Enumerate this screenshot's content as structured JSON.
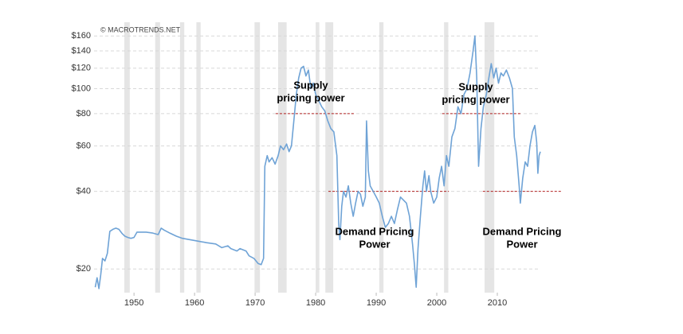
{
  "chart_data": {
    "type": "line",
    "watermark": "© MACROTRENDS.NET",
    "log_scale": true,
    "grid": true,
    "xlim": [
      1943.4,
      2017.5
    ],
    "xticks": [
      1950,
      1960,
      1970,
      1980,
      1990,
      2000,
      2010
    ],
    "ylim": [
      16.2,
      166
    ],
    "yticks": [
      {
        "value": 20,
        "label": "$20"
      },
      {
        "value": 40,
        "label": "$40"
      },
      {
        "value": 60,
        "label": "$60"
      },
      {
        "value": 80,
        "label": "$80"
      },
      {
        "value": 100,
        "label": "$100"
      },
      {
        "value": 120,
        "label": "$120"
      },
      {
        "value": 140,
        "label": "$140"
      },
      {
        "value": 160,
        "label": "$160"
      }
    ],
    "recessions": [
      [
        1948.4,
        1949.3
      ],
      [
        1953.5,
        1954.3
      ],
      [
        1957.6,
        1958.3
      ],
      [
        1960.3,
        1961.0
      ],
      [
        1969.9,
        1970.8
      ],
      [
        1973.8,
        1975.2
      ],
      [
        1980.0,
        1980.6
      ],
      [
        1981.6,
        1982.9
      ],
      [
        1990.5,
        1991.2
      ],
      [
        2001.2,
        2001.9
      ],
      [
        2007.9,
        2009.5
      ]
    ],
    "series": [
      {
        "color": "#6fa3d6",
        "x": [
          1943.6,
          1943.9,
          1944.2,
          1944.5,
          1944.8,
          1945.2,
          1945.6,
          1946.0,
          1946.5,
          1947.0,
          1947.5,
          1948.0,
          1948.5,
          1949.0,
          1949.5,
          1950.0,
          1950.5,
          1951.0,
          1952.0,
          1953.0,
          1954.0,
          1954.5,
          1955.0,
          1956.0,
          1957.0,
          1958.0,
          1960.0,
          1962.0,
          1963.5,
          1964.5,
          1965.5,
          1966.0,
          1967.0,
          1967.5,
          1968.5,
          1969.0,
          1969.8,
          1970.5,
          1971.0,
          1971.4,
          1971.6,
          1972.0,
          1972.3,
          1972.8,
          1973.3,
          1973.8,
          1974.2,
          1974.7,
          1975.2,
          1975.6,
          1976.0,
          1976.4,
          1976.8,
          1977.2,
          1977.6,
          1978.0,
          1978.4,
          1978.8,
          1979.2,
          1979.6,
          1980.0,
          1980.5,
          1981.0,
          1981.5,
          1982.0,
          1982.5,
          1983.0,
          1983.5,
          1983.8,
          1984.0,
          1984.3,
          1984.6,
          1985.0,
          1985.4,
          1985.8,
          1986.2,
          1986.6,
          1987.0,
          1987.4,
          1987.8,
          1988.2,
          1988.4,
          1988.7,
          1989.0,
          1989.5,
          1990.0,
          1990.5,
          1991.0,
          1991.5,
          1992.0,
          1992.5,
          1993.0,
          1993.5,
          1994.0,
          1994.5,
          1995.0,
          1995.5,
          1996.0,
          1996.3,
          1996.6,
          1996.9,
          1997.3,
          1997.7,
          1998.0,
          1998.3,
          1998.7,
          1999.0,
          1999.5,
          2000.0,
          2000.4,
          2000.8,
          2001.2,
          2001.6,
          2002.0,
          2002.5,
          2003.0,
          2003.5,
          2004.0,
          2004.5,
          2005.0,
          2005.5,
          2006.0,
          2006.3,
          2006.6,
          2006.9,
          2007.3,
          2007.7,
          2008.2,
          2008.6,
          2009.0,
          2009.4,
          2009.8,
          2010.2,
          2010.6,
          2011.0,
          2011.5,
          2012.0,
          2012.5,
          2012.8,
          2013.2,
          2013.6,
          2013.8,
          2014.2,
          2014.6,
          2015.0,
          2015.4,
          2015.8,
          2016.2,
          2016.5,
          2016.7,
          2016.9,
          2017.1
        ],
        "values": [
          17,
          18.5,
          16.8,
          19,
          22,
          21.5,
          23,
          28,
          28.5,
          28.8,
          28.5,
          27.5,
          26.8,
          26.5,
          26.3,
          26.5,
          27.8,
          27.8,
          27.8,
          27.6,
          27.2,
          28.8,
          28.3,
          27.5,
          26.8,
          26.3,
          25.8,
          25.3,
          25.0,
          24.2,
          24.6,
          24.0,
          23.5,
          24.0,
          23.5,
          22.5,
          22.0,
          21.0,
          20.8,
          22.0,
          50,
          55,
          52,
          54,
          51,
          55,
          60,
          58,
          61,
          57,
          60,
          75,
          95,
          110,
          120,
          122,
          112,
          118,
          100,
          105,
          95,
          90,
          85,
          82,
          75,
          70,
          68,
          55,
          30,
          26,
          35,
          40,
          38,
          42,
          36,
          32,
          36,
          40,
          39,
          35,
          38,
          75,
          48,
          42,
          40,
          38,
          36,
          32,
          29,
          30,
          32,
          30,
          34,
          38,
          37,
          36,
          32,
          25,
          21,
          17,
          24,
          32,
          42,
          48,
          40,
          46,
          40,
          36,
          38,
          45,
          50,
          42,
          55,
          50,
          65,
          70,
          85,
          80,
          95,
          100,
          115,
          140,
          160,
          110,
          50,
          70,
          85,
          95,
          110,
          125,
          110,
          120,
          105,
          115,
          112,
          118,
          110,
          100,
          65,
          55,
          42,
          36,
          45,
          52,
          50,
          60,
          68,
          72,
          62,
          47,
          55,
          57
        ]
      }
    ],
    "reference_lines": [
      {
        "y": 80,
        "x": [
          1973.4,
          1986.3
        ]
      },
      {
        "y": 80,
        "x": [
          2000.9,
          2013.8
        ]
      },
      {
        "y": 40,
        "x": [
          1982.1,
          2002.0
        ]
      },
      {
        "y": 40,
        "x": [
          2007.6,
          2020.6
        ]
      }
    ],
    "annotations": [
      {
        "lines": [
          "Supply",
          "pricing power"
        ]
      },
      {
        "lines": [
          "Supply",
          "pricing power"
        ]
      },
      {
        "lines": [
          "Demand Pricing",
          "Power"
        ]
      },
      {
        "lines": [
          "Demand Pricing",
          "Power"
        ]
      }
    ]
  }
}
